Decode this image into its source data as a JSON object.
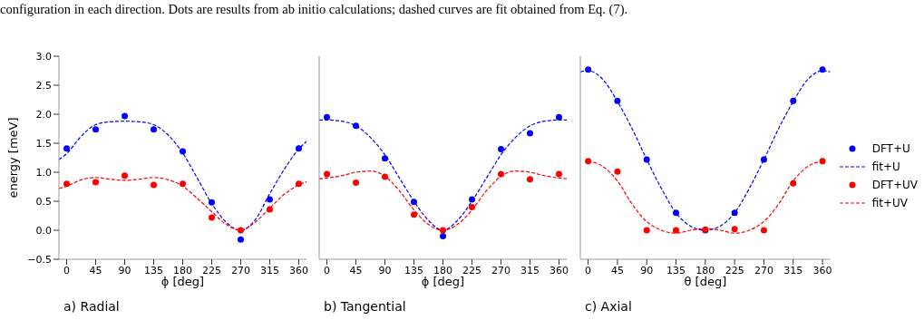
{
  "chart_data": [
    {
      "type": "scatter",
      "title": "a) Radial",
      "xlabel": "ϕ [deg]",
      "ylabel": "energy [meV]",
      "annotations": [
        "configuration in each direction. Dots are results from ab initio calculations; dashed curves are fit obtained from Eq. (7)."
      ],
      "xlim": [
        -12,
        372
      ],
      "xticks": [
        0,
        45,
        90,
        135,
        180,
        225,
        270,
        315,
        360
      ],
      "ylim": [
        -0.5,
        3.0
      ],
      "yticks": [
        -0.5,
        {
          "value": 0,
          "label": "0.0"
        },
        0.5,
        {
          "value": 1,
          "label": "1.0"
        },
        1.5,
        {
          "value": 2,
          "label": "2.0"
        },
        2.5,
        {
          "value": 3,
          "label": "3.0"
        }
      ],
      "grid": false,
      "series": [
        {
          "type": "scatter",
          "color": "#0000ff",
          "marker": "circle",
          "x": [
            0,
            45,
            90,
            135,
            180,
            225,
            270,
            315,
            360
          ],
          "values": [
            1.41,
            1.74,
            1.97,
            1.74,
            1.36,
            0.48,
            -0.16,
            0.53,
            1.41
          ]
        },
        {
          "type": "line",
          "color": "#0000ff",
          "line_style": "dashed",
          "x": [
            -12,
            0,
            22.5,
            45,
            67.5,
            90,
            112.5,
            135,
            157.5,
            180,
            202.5,
            225,
            247.5,
            270,
            292.5,
            315,
            337.5,
            360,
            372
          ],
          "values": [
            1.22,
            1.32,
            1.62,
            1.82,
            1.87,
            1.88,
            1.87,
            1.82,
            1.64,
            1.33,
            0.9,
            0.46,
            0.14,
            0.0,
            0.18,
            0.63,
            1.05,
            1.4,
            1.53
          ]
        },
        {
          "type": "scatter",
          "color": "#ff0000",
          "marker": "circle",
          "x": [
            0,
            45,
            90,
            135,
            180,
            225,
            270,
            315,
            360
          ],
          "values": [
            0.8,
            0.83,
            0.94,
            0.78,
            0.8,
            0.22,
            0.0,
            0.36,
            0.8
          ]
        },
        {
          "type": "line",
          "color": "#ff0000",
          "line_style": "dashed",
          "x": [
            -12,
            0,
            22.5,
            45,
            67.5,
            90,
            112.5,
            135,
            157.5,
            180,
            202.5,
            225,
            247.5,
            270,
            292.5,
            315,
            337.5,
            360,
            372
          ],
          "values": [
            0.72,
            0.76,
            0.87,
            0.91,
            0.88,
            0.86,
            0.88,
            0.91,
            0.87,
            0.76,
            0.55,
            0.32,
            0.1,
            0.0,
            0.14,
            0.38,
            0.62,
            0.78,
            0.84
          ]
        }
      ]
    },
    {
      "type": "scatter",
      "title": "b) Tangential",
      "xlabel": "ϕ [deg]",
      "tick_labels": "x",
      "xlim": [
        -12,
        372
      ],
      "xticks": [
        0,
        45,
        90,
        135,
        180,
        225,
        270,
        315,
        360
      ],
      "ylim": [
        -0.5,
        3.0
      ],
      "yticks": [
        -0.5,
        0.0,
        0.5,
        1.0,
        1.5,
        2.0,
        2.5,
        3.0
      ],
      "grid": false,
      "series": [
        {
          "type": "scatter",
          "color": "#0000ff",
          "marker": "circle",
          "x": [
            0,
            45,
            90,
            135,
            180,
            225,
            270,
            315,
            360
          ],
          "values": [
            1.95,
            1.8,
            1.24,
            0.49,
            -0.1,
            0.53,
            1.4,
            1.67,
            1.95
          ]
        },
        {
          "type": "line",
          "color": "#0000ff",
          "line_style": "dashed",
          "x": [
            -12,
            0,
            22.5,
            45,
            67.5,
            90,
            112.5,
            135,
            157.5,
            180,
            202.5,
            225,
            247.5,
            270,
            292.5,
            315,
            337.5,
            360,
            372
          ],
          "values": [
            1.9,
            1.9,
            1.88,
            1.8,
            1.6,
            1.3,
            0.9,
            0.5,
            0.17,
            0.0,
            0.17,
            0.5,
            0.9,
            1.3,
            1.6,
            1.8,
            1.88,
            1.9,
            1.9
          ]
        },
        {
          "type": "scatter",
          "color": "#ff0000",
          "marker": "circle",
          "x": [
            0,
            45,
            90,
            135,
            180,
            225,
            270,
            315,
            360
          ],
          "values": [
            0.97,
            0.82,
            0.92,
            0.27,
            0.0,
            0.4,
            0.97,
            0.88,
            0.97
          ]
        },
        {
          "type": "line",
          "color": "#ff0000",
          "line_style": "dashed",
          "x": [
            -12,
            0,
            22.5,
            45,
            67.5,
            90,
            112.5,
            135,
            157.5,
            180,
            202.5,
            225,
            247.5,
            270,
            292.5,
            315,
            337.5,
            360,
            372
          ],
          "values": [
            0.89,
            0.9,
            0.94,
            1.0,
            1.02,
            0.93,
            0.68,
            0.35,
            0.1,
            0.0,
            0.1,
            0.35,
            0.68,
            0.93,
            1.02,
            1.0,
            0.94,
            0.9,
            0.89
          ]
        }
      ]
    },
    {
      "type": "scatter",
      "title": "c) Axial",
      "xlabel": "θ [deg]",
      "tick_labels": "x",
      "legend": "right",
      "xlim": [
        -12,
        372
      ],
      "xticks": [
        0,
        45,
        90,
        135,
        180,
        225,
        270,
        315,
        360
      ],
      "ylim": [
        -0.5,
        3.0
      ],
      "yticks": [
        -0.5,
        0.0,
        0.5,
        1.0,
        1.5,
        2.0,
        2.5,
        3.0
      ],
      "grid": false,
      "series": [
        {
          "type": "scatter",
          "name": "DFT+U",
          "color": "#0000ff",
          "marker": "circle",
          "x": [
            0,
            45,
            90,
            135,
            180,
            225,
            270,
            315,
            360
          ],
          "values": [
            2.77,
            2.23,
            1.22,
            0.3,
            0.0,
            0.3,
            1.22,
            2.23,
            2.77
          ]
        },
        {
          "type": "line",
          "name": "fit+U",
          "color": "#0000ff",
          "line_style": "dashed",
          "x": [
            -12,
            0,
            22.5,
            45,
            67.5,
            90,
            112.5,
            135,
            157.5,
            180,
            202.5,
            225,
            247.5,
            270,
            292.5,
            315,
            337.5,
            360,
            372
          ],
          "values": [
            2.73,
            2.75,
            2.6,
            2.22,
            1.75,
            1.22,
            0.72,
            0.3,
            0.07,
            0.0,
            0.07,
            0.3,
            0.72,
            1.22,
            1.75,
            2.22,
            2.6,
            2.75,
            2.73
          ]
        },
        {
          "type": "scatter",
          "name": "DFT+UV",
          "color": "#ff0000",
          "marker": "circle",
          "x": [
            0,
            45,
            90,
            135,
            180,
            225,
            270,
            315,
            360
          ],
          "values": [
            1.19,
            1.01,
            0.0,
            0.0,
            0.01,
            0.02,
            0.0,
            0.81,
            1.19
          ]
        },
        {
          "type": "line",
          "name": "fit+UV",
          "color": "#ff0000",
          "line_style": "dashed",
          "x": [
            0,
            22.5,
            45,
            67.5,
            90,
            112.5,
            135,
            157.5,
            180,
            202.5,
            225,
            247.5,
            270,
            292.5,
            315,
            337.5,
            360
          ],
          "values": [
            1.19,
            1.1,
            0.85,
            0.45,
            0.15,
            0.0,
            -0.05,
            0.0,
            0.03,
            0.0,
            -0.05,
            0.0,
            0.15,
            0.45,
            0.85,
            1.1,
            1.19
          ]
        }
      ]
    }
  ]
}
